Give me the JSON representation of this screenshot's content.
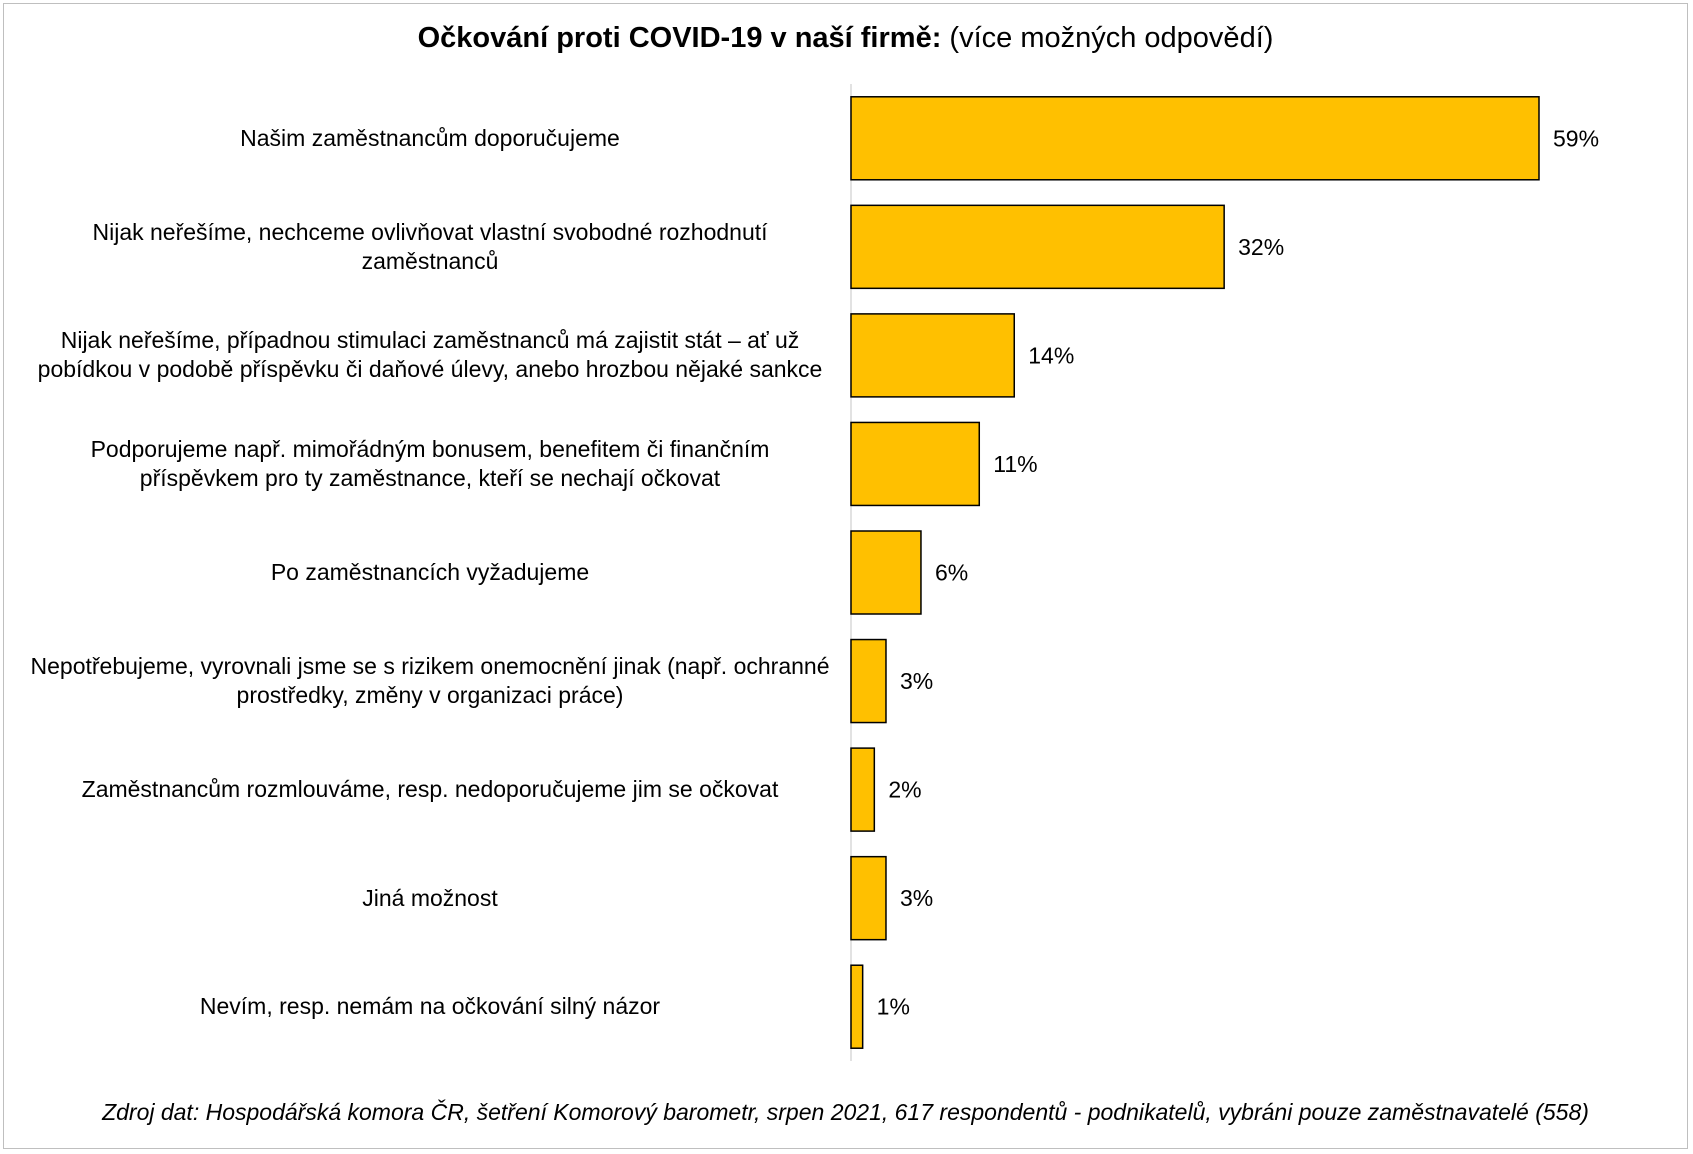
{
  "title_bold": "Očkování proti COVID-19 v naší firmě:",
  "title_rest": "(více možných odpovědí)",
  "source": "Zdroj dat: Hospodářská komora ČR, šetření Komorový barometr, srpen 2021, 617 respondentů - podnikatelů, vybráni pouze zaměstnavatelé (558)",
  "colors": {
    "bar": "#ffc000",
    "bar_stroke": "#000000",
    "axis": "#d9d9d9"
  },
  "chart_data": {
    "type": "bar",
    "orientation": "horizontal",
    "categories": [
      "Našim zaměstnancům doporučujeme",
      "Nijak neřešíme, nechceme ovlivňovat vlastní svobodné rozhodnutí zaměstnanců",
      "Nijak neřešíme, případnou stimulaci zaměstnanců má zajistit stát – ať už pobídkou v podobě příspěvku či daňové úlevy, anebo hrozbou nějaké sankce",
      "Podporujeme např. mimořádným bonusem, benefitem či finančním příspěvkem pro ty zaměstnance, kteří se nechají očkovat",
      "Po zaměstnancích vyžadujeme",
      "Nepotřebujeme, vyrovnali jsme se s rizikem onemocnění jinak (např. ochranné prostředky, změny v organizaci práce)",
      "Zaměstnancům rozmlouváme, resp. nedoporučujeme jim se očkovat",
      "Jiná možnost",
      "Nevím, resp. nemám na očkování silný názor"
    ],
    "values": [
      59,
      32,
      14,
      11,
      6,
      3,
      2,
      3,
      1
    ],
    "value_labels": [
      "59%",
      "32%",
      "14%",
      "11%",
      "6%",
      "3%",
      "2%",
      "3%",
      "1%"
    ],
    "xlim": [
      0,
      70
    ],
    "grid": false
  }
}
